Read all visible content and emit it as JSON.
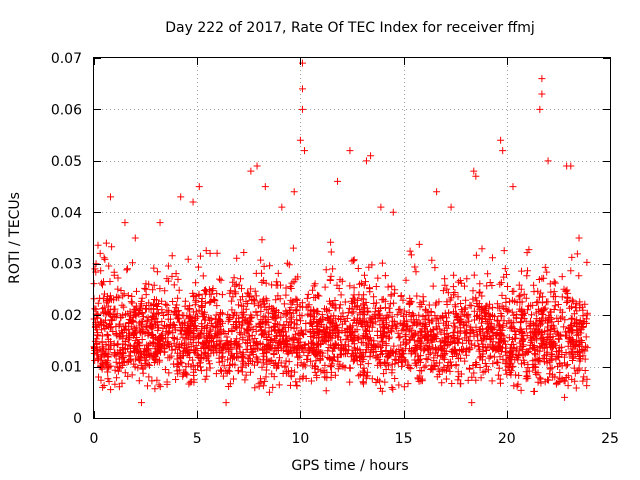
{
  "chart_data": {
    "type": "scatter",
    "title": "Day 222 of 2017, Rate Of TEC Index for receiver ffmj",
    "xlabel": "GPS time / hours",
    "ylabel": "ROTI / TECUs",
    "xlim": [
      0,
      25
    ],
    "ylim": [
      0,
      0.07
    ],
    "grid": true,
    "marker": "+",
    "color": "#ff0000",
    "x_ticks": [
      0,
      5,
      10,
      15,
      20,
      25
    ],
    "x_tick_labels": [
      "0",
      "5",
      "10",
      "15",
      "20",
      "25"
    ],
    "y_ticks": [
      0,
      0.01,
      0.02,
      0.03,
      0.04,
      0.05,
      0.06,
      0.07
    ],
    "y_tick_labels": [
      "0",
      "0.01",
      "0.02",
      "0.03",
      "0.04",
      "0.05",
      "0.06",
      "0.07"
    ],
    "series": [
      {
        "name": "ROTI",
        "data_range": {
          "x_min": 0.0,
          "x_max": 23.9,
          "typical_low": 0.005,
          "typical_high": 0.025
        },
        "points": [
          {
            "x": 0.1,
            "y": 0.03
          },
          {
            "x": 0.3,
            "y": 0.032
          },
          {
            "x": 0.6,
            "y": 0.034
          },
          {
            "x": 0.8,
            "y": 0.043
          },
          {
            "x": 1.5,
            "y": 0.038
          },
          {
            "x": 2.0,
            "y": 0.035
          },
          {
            "x": 3.2,
            "y": 0.038
          },
          {
            "x": 4.2,
            "y": 0.043
          },
          {
            "x": 4.8,
            "y": 0.042
          },
          {
            "x": 5.1,
            "y": 0.045
          },
          {
            "x": 7.6,
            "y": 0.048
          },
          {
            "x": 7.9,
            "y": 0.049
          },
          {
            "x": 8.3,
            "y": 0.045
          },
          {
            "x": 9.1,
            "y": 0.041
          },
          {
            "x": 9.7,
            "y": 0.044
          },
          {
            "x": 10.0,
            "y": 0.054
          },
          {
            "x": 10.1,
            "y": 0.069
          },
          {
            "x": 10.1,
            "y": 0.064
          },
          {
            "x": 10.1,
            "y": 0.06
          },
          {
            "x": 10.2,
            "y": 0.052
          },
          {
            "x": 11.8,
            "y": 0.046
          },
          {
            "x": 12.4,
            "y": 0.052
          },
          {
            "x": 13.2,
            "y": 0.05
          },
          {
            "x": 13.4,
            "y": 0.051
          },
          {
            "x": 13.9,
            "y": 0.041
          },
          {
            "x": 14.5,
            "y": 0.04
          },
          {
            "x": 16.6,
            "y": 0.044
          },
          {
            "x": 17.3,
            "y": 0.041
          },
          {
            "x": 18.4,
            "y": 0.048
          },
          {
            "x": 18.5,
            "y": 0.047
          },
          {
            "x": 19.7,
            "y": 0.054
          },
          {
            "x": 19.8,
            "y": 0.052
          },
          {
            "x": 20.3,
            "y": 0.045
          },
          {
            "x": 21.7,
            "y": 0.066
          },
          {
            "x": 21.7,
            "y": 0.063
          },
          {
            "x": 21.6,
            "y": 0.06
          },
          {
            "x": 22.0,
            "y": 0.05
          },
          {
            "x": 22.9,
            "y": 0.049
          },
          {
            "x": 23.1,
            "y": 0.049
          },
          {
            "x": 23.5,
            "y": 0.035
          },
          {
            "x": 2.3,
            "y": 0.003
          },
          {
            "x": 6.4,
            "y": 0.003
          },
          {
            "x": 18.3,
            "y": 0.003
          },
          {
            "x": 8.5,
            "y": 0.005
          },
          {
            "x": 22.8,
            "y": 0.004
          }
        ]
      }
    ]
  }
}
